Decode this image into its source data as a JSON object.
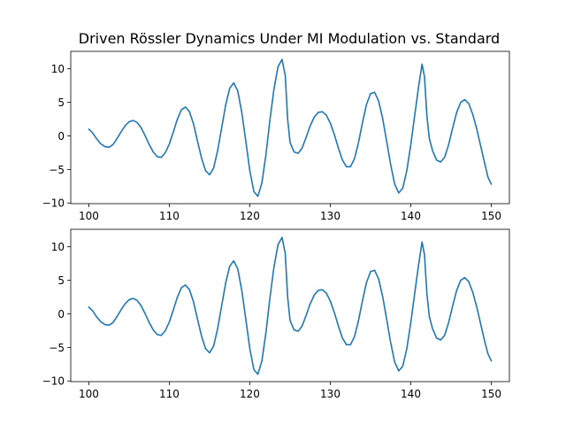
{
  "chart_data": {
    "title": "Driven Rössler Dynamics Under MI Modulation vs. Standard",
    "line_color": "#1f77b4",
    "panels": [
      {
        "type": "line",
        "xlim": [
          97.75,
          152.25
        ],
        "ylim": [
          -10.1,
          12.6
        ],
        "xticks": [
          100,
          110,
          120,
          130,
          140,
          150
        ],
        "yticks": [
          -10,
          -5,
          0,
          5,
          10
        ],
        "series": [
          {
            "points": [
              [
                100.0,
                1.0
              ],
              [
                100.5,
                0.4
              ],
              [
                101.0,
                -0.5
              ],
              [
                101.5,
                -1.2
              ],
              [
                102.0,
                -1.6
              ],
              [
                102.5,
                -1.7
              ],
              [
                103.0,
                -1.3
              ],
              [
                103.5,
                -0.4
              ],
              [
                104.0,
                0.6
              ],
              [
                104.5,
                1.5
              ],
              [
                105.0,
                2.1
              ],
              [
                105.5,
                2.3
              ],
              [
                106.0,
                2.0
              ],
              [
                106.5,
                1.2
              ],
              [
                107.0,
                0.0
              ],
              [
                107.5,
                -1.3
              ],
              [
                108.0,
                -2.4
              ],
              [
                108.5,
                -3.1
              ],
              [
                109.0,
                -3.2
              ],
              [
                109.5,
                -2.5
              ],
              [
                110.0,
                -1.2
              ],
              [
                110.5,
                0.6
              ],
              [
                111.0,
                2.5
              ],
              [
                111.5,
                3.9
              ],
              [
                112.0,
                4.3
              ],
              [
                112.5,
                3.6
              ],
              [
                113.0,
                1.8
              ],
              [
                113.5,
                -0.8
              ],
              [
                114.0,
                -3.3
              ],
              [
                114.5,
                -5.2
              ],
              [
                115.0,
                -5.8
              ],
              [
                115.5,
                -4.8
              ],
              [
                116.0,
                -2.2
              ],
              [
                116.5,
                1.2
              ],
              [
                117.0,
                4.6
              ],
              [
                117.5,
                7.1
              ],
              [
                118.0,
                7.9
              ],
              [
                118.5,
                6.7
              ],
              [
                119.0,
                3.5
              ],
              [
                119.5,
                -0.8
              ],
              [
                120.0,
                -5.2
              ],
              [
                120.5,
                -8.3
              ],
              [
                121.0,
                -9.0
              ],
              [
                121.5,
                -7.0
              ],
              [
                122.0,
                -2.8
              ],
              [
                122.5,
                2.4
              ],
              [
                123.0,
                7.0
              ],
              [
                123.5,
                10.3
              ],
              [
                124.0,
                11.4
              ],
              [
                124.4,
                9.0
              ],
              [
                124.7,
                2.5
              ],
              [
                125.0,
                -1.0
              ],
              [
                125.5,
                -2.4
              ],
              [
                126.0,
                -2.6
              ],
              [
                126.5,
                -1.8
              ],
              [
                127.0,
                -0.2
              ],
              [
                127.5,
                1.5
              ],
              [
                128.0,
                2.8
              ],
              [
                128.5,
                3.5
              ],
              [
                129.0,
                3.6
              ],
              [
                129.5,
                3.1
              ],
              [
                130.0,
                1.9
              ],
              [
                130.5,
                0.2
              ],
              [
                131.0,
                -1.8
              ],
              [
                131.5,
                -3.6
              ],
              [
                132.0,
                -4.6
              ],
              [
                132.5,
                -4.6
              ],
              [
                133.0,
                -3.4
              ],
              [
                133.5,
                -1.0
              ],
              [
                134.0,
                2.0
              ],
              [
                134.5,
                4.7
              ],
              [
                135.0,
                6.3
              ],
              [
                135.5,
                6.5
              ],
              [
                136.0,
                5.2
              ],
              [
                136.5,
                2.6
              ],
              [
                137.0,
                -0.8
              ],
              [
                137.5,
                -4.3
              ],
              [
                138.0,
                -7.2
              ],
              [
                138.5,
                -8.5
              ],
              [
                139.0,
                -7.8
              ],
              [
                139.5,
                -5.2
              ],
              [
                140.0,
                -1.3
              ],
              [
                140.5,
                3.2
              ],
              [
                141.0,
                7.6
              ],
              [
                141.4,
                10.7
              ],
              [
                141.7,
                8.8
              ],
              [
                142.0,
                3.0
              ],
              [
                142.3,
                -0.4
              ],
              [
                142.7,
                -2.2
              ],
              [
                143.2,
                -3.6
              ],
              [
                143.7,
                -3.9
              ],
              [
                144.2,
                -3.2
              ],
              [
                144.7,
                -1.3
              ],
              [
                145.2,
                1.2
              ],
              [
                145.7,
                3.5
              ],
              [
                146.2,
                5.0
              ],
              [
                146.7,
                5.4
              ],
              [
                147.2,
                4.8
              ],
              [
                147.7,
                3.2
              ],
              [
                148.2,
                1.0
              ],
              [
                148.7,
                -1.6
              ],
              [
                149.2,
                -4.2
              ],
              [
                149.6,
                -6.2
              ],
              [
                150.0,
                -7.2
              ]
            ]
          }
        ]
      },
      {
        "type": "line",
        "xlim": [
          97.75,
          152.25
        ],
        "ylim": [
          -10.1,
          12.6
        ],
        "xticks": [
          100,
          110,
          120,
          130,
          140,
          150
        ],
        "yticks": [
          -10,
          -5,
          0,
          5,
          10
        ],
        "series": [
          {
            "points": [
              [
                100.0,
                1.0
              ],
              [
                100.5,
                0.4
              ],
              [
                101.0,
                -0.5
              ],
              [
                101.5,
                -1.2
              ],
              [
                102.0,
                -1.6
              ],
              [
                102.5,
                -1.7
              ],
              [
                103.0,
                -1.3
              ],
              [
                103.5,
                -0.4
              ],
              [
                104.0,
                0.6
              ],
              [
                104.5,
                1.5
              ],
              [
                105.0,
                2.1
              ],
              [
                105.5,
                2.3
              ],
              [
                106.0,
                2.0
              ],
              [
                106.5,
                1.2
              ],
              [
                107.0,
                0.0
              ],
              [
                107.5,
                -1.3
              ],
              [
                108.0,
                -2.4
              ],
              [
                108.5,
                -3.1
              ],
              [
                109.0,
                -3.2
              ],
              [
                109.5,
                -2.5
              ],
              [
                110.0,
                -1.2
              ],
              [
                110.5,
                0.6
              ],
              [
                111.0,
                2.5
              ],
              [
                111.5,
                3.9
              ],
              [
                112.0,
                4.3
              ],
              [
                112.5,
                3.6
              ],
              [
                113.0,
                1.8
              ],
              [
                113.5,
                -0.8
              ],
              [
                114.0,
                -3.3
              ],
              [
                114.5,
                -5.2
              ],
              [
                115.0,
                -5.8
              ],
              [
                115.5,
                -4.8
              ],
              [
                116.0,
                -2.2
              ],
              [
                116.5,
                1.2
              ],
              [
                117.0,
                4.6
              ],
              [
                117.5,
                7.1
              ],
              [
                118.0,
                7.9
              ],
              [
                118.5,
                6.7
              ],
              [
                119.0,
                3.5
              ],
              [
                119.5,
                -0.8
              ],
              [
                120.0,
                -5.2
              ],
              [
                120.5,
                -8.3
              ],
              [
                121.0,
                -9.0
              ],
              [
                121.5,
                -7.0
              ],
              [
                122.0,
                -2.8
              ],
              [
                122.5,
                2.4
              ],
              [
                123.0,
                7.0
              ],
              [
                123.5,
                10.3
              ],
              [
                124.0,
                11.4
              ],
              [
                124.4,
                9.0
              ],
              [
                124.7,
                2.5
              ],
              [
                125.0,
                -1.0
              ],
              [
                125.5,
                -2.4
              ],
              [
                126.0,
                -2.6
              ],
              [
                126.5,
                -1.8
              ],
              [
                127.0,
                -0.2
              ],
              [
                127.5,
                1.5
              ],
              [
                128.0,
                2.8
              ],
              [
                128.5,
                3.5
              ],
              [
                129.0,
                3.6
              ],
              [
                129.5,
                3.1
              ],
              [
                130.0,
                1.9
              ],
              [
                130.5,
                0.2
              ],
              [
                131.0,
                -1.8
              ],
              [
                131.5,
                -3.6
              ],
              [
                132.0,
                -4.6
              ],
              [
                132.5,
                -4.6
              ],
              [
                133.0,
                -3.4
              ],
              [
                133.5,
                -1.0
              ],
              [
                134.0,
                2.0
              ],
              [
                134.5,
                4.7
              ],
              [
                135.0,
                6.3
              ],
              [
                135.5,
                6.5
              ],
              [
                136.0,
                5.2
              ],
              [
                136.5,
                2.6
              ],
              [
                137.0,
                -0.8
              ],
              [
                137.5,
                -4.3
              ],
              [
                138.0,
                -7.2
              ],
              [
                138.5,
                -8.5
              ],
              [
                139.0,
                -7.8
              ],
              [
                139.5,
                -5.2
              ],
              [
                140.0,
                -1.3
              ],
              [
                140.5,
                3.2
              ],
              [
                141.0,
                7.6
              ],
              [
                141.4,
                10.7
              ],
              [
                141.7,
                8.8
              ],
              [
                142.0,
                3.0
              ],
              [
                142.3,
                -0.4
              ],
              [
                142.7,
                -2.2
              ],
              [
                143.2,
                -3.6
              ],
              [
                143.7,
                -3.9
              ],
              [
                144.2,
                -3.2
              ],
              [
                144.7,
                -1.3
              ],
              [
                145.2,
                1.2
              ],
              [
                145.7,
                3.5
              ],
              [
                146.2,
                5.0
              ],
              [
                146.7,
                5.4
              ],
              [
                147.2,
                4.8
              ],
              [
                147.7,
                3.2
              ],
              [
                148.2,
                1.0
              ],
              [
                148.7,
                -1.6
              ],
              [
                149.2,
                -4.2
              ],
              [
                149.6,
                -6.0
              ],
              [
                150.0,
                -7.0
              ]
            ]
          }
        ]
      }
    ]
  }
}
